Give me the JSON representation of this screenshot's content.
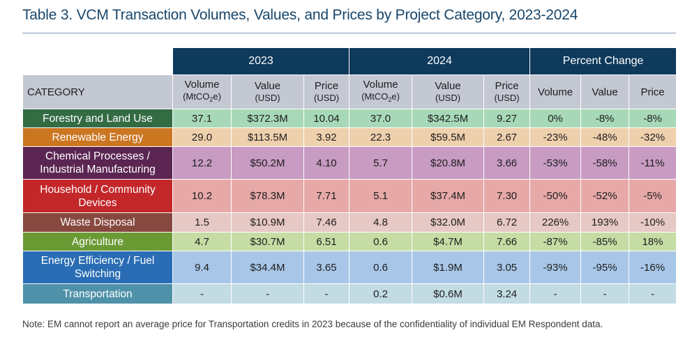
{
  "title": "Table 3. VCM Transaction Volumes, Values, and Prices by Project Category, 2023-2024",
  "header": {
    "group_2023": "2023",
    "group_2024": "2024",
    "group_pct": "Percent Change",
    "category_label": "CATEGORY",
    "volume": "Volume",
    "value": "Value",
    "price": "Price",
    "unit_mtco2e_prefix": "(MtCO",
    "unit_mtco2e_sub": "2",
    "unit_mtco2e_suffix": "e)",
    "unit_usd": "(USD)"
  },
  "rows": [
    {
      "category": "Forestry and Land Use",
      "cat_color": "#336b43",
      "cell_color": "#a7d9b8",
      "v23": "37.1",
      "val23": "$372.3M",
      "p23": "10.04",
      "v24": "37.0",
      "val24": "$342.5M",
      "p24": "9.27",
      "pv": "0%",
      "pval": "-8%",
      "pp": "-8%"
    },
    {
      "category": "Renewable Energy",
      "cat_color": "#cb7621",
      "cell_color": "#efd0ad",
      "v23": "29.0",
      "val23": "$113.5M",
      "p23": "3.92",
      "v24": "22.3",
      "val24": "$59.5M",
      "p24": "2.67",
      "pv": "-23%",
      "pval": "-48%",
      "pp": "-32%"
    },
    {
      "category_line1": "Chemical Processes /",
      "category_line2": "Industrial Manufacturing",
      "cat_color": "#5b2552",
      "cell_color": "#c79bc2",
      "v23": "12.2",
      "val23": "$50.2M",
      "p23": "4.10",
      "v24": "5.7",
      "val24": "$20.8M",
      "p24": "3.66",
      "pv": "-53%",
      "pval": "-58%",
      "pp": "-11%"
    },
    {
      "category_line1": "Household / Community",
      "category_line2": "Devices",
      "cat_color": "#c3272a",
      "cell_color": "#e6a9a8",
      "v23": "10.2",
      "val23": "$78.3M",
      "p23": "7.71",
      "v24": "5.1",
      "val24": "$37.4M",
      "p24": "7.30",
      "pv": "-50%",
      "pval": "-52%",
      "pp": "-5%"
    },
    {
      "category": "Waste Disposal",
      "cat_color": "#87493f",
      "cell_color": "#e6c8c4",
      "v23": "1.5",
      "val23": "$10.9M",
      "p23": "7.46",
      "v24": "4.8",
      "val24": "$32.0M",
      "p24": "6.72",
      "pv": "226%",
      "pval": "193%",
      "pp": "-10%"
    },
    {
      "category": "Agriculture",
      "cat_color": "#6b9a35",
      "cell_color": "#c5dda5",
      "v23": "4.7",
      "val23": "$30.7M",
      "p23": "6.51",
      "v24": "0.6",
      "val24": "$4.7M",
      "p24": "7.66",
      "pv": "-87%",
      "pval": "-85%",
      "pp": "18%"
    },
    {
      "category_line1": "Energy Efficiency / Fuel",
      "category_line2": "Switching",
      "cat_color": "#2a6db4",
      "cell_color": "#a8c7e8",
      "v23": "9.4",
      "val23": "$34.4M",
      "p23": "3.65",
      "v24": "0.6",
      "val24": "$1.9M",
      "p24": "3.05",
      "pv": "-93%",
      "pval": "-95%",
      "pp": "-16%"
    },
    {
      "category": "Transportation",
      "cat_color": "#4f91a9",
      "cell_color": "#c3dce4",
      "v23": "-",
      "val23": "-",
      "p23": "-",
      "v24": "0.2",
      "val24": "$0.6M",
      "p24": "3.24",
      "pv": "-",
      "pval": "-",
      "pp": "-"
    }
  ],
  "note": "Note: EM cannot report an average price for Transportation credits in 2023 because of the confidentiality of individual EM Respondent data."
}
